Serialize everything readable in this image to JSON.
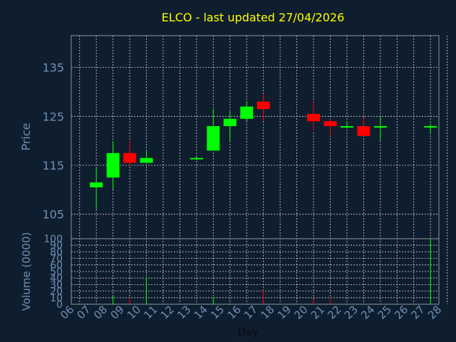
{
  "colors": {
    "background": "#0f1e2e",
    "grid": "#ffffff",
    "axis_text": "#6f8fb5",
    "title": "#ffff00",
    "up": "#00ff00",
    "down": "#ff0000"
  },
  "chart_data": {
    "type": "candlestick",
    "title": "ELCO - last updated 27/04/2026",
    "xlabel": "Day",
    "x_ticks": [
      "06",
      "07",
      "08",
      "09",
      "10",
      "11",
      "12",
      "13",
      "14",
      "15",
      "16",
      "17",
      "18",
      "19",
      "20",
      "21",
      "22",
      "23",
      "24",
      "25",
      "26",
      "27",
      "28"
    ],
    "price_panel": {
      "ylabel": "Price",
      "y_ticks": [
        135,
        125,
        115,
        105
      ],
      "ylim": [
        100,
        141.5
      ],
      "grid": true,
      "candles": [
        {
          "day": "07",
          "open": 110.5,
          "high": 114.5,
          "low": 106,
          "close": 111.5
        },
        {
          "day": "08",
          "open": 112.5,
          "high": 120,
          "low": 110,
          "close": 117.5
        },
        {
          "day": "09",
          "open": 117.5,
          "high": 120,
          "low": 115,
          "close": 115.5
        },
        {
          "day": "10",
          "open": 115.5,
          "high": 118,
          "low": 115.5,
          "close": 116.5
        },
        {
          "day": "13",
          "open": 116.3,
          "high": 116.8,
          "low": 116,
          "close": 116.5
        },
        {
          "day": "14",
          "open": 118,
          "high": 126.5,
          "low": 118,
          "close": 123
        },
        {
          "day": "15",
          "open": 123,
          "high": 126,
          "low": 120,
          "close": 124.5
        },
        {
          "day": "16",
          "open": 124.5,
          "high": 128,
          "low": 124,
          "close": 127
        },
        {
          "day": "17",
          "open": 128,
          "high": 129.5,
          "low": 124,
          "close": 126.5
        },
        {
          "day": "20",
          "open": 125.5,
          "high": 128,
          "low": 122,
          "close": 124
        },
        {
          "day": "21",
          "open": 124,
          "high": 124.5,
          "low": 121,
          "close": 123
        },
        {
          "day": "22",
          "open": 123,
          "high": 124,
          "low": 122.5,
          "close": 123
        },
        {
          "day": "23",
          "open": 123,
          "high": 125,
          "low": 121,
          "close": 121
        },
        {
          "day": "24",
          "open": 123,
          "high": 125,
          "low": 120,
          "close": 123
        },
        {
          "day": "27",
          "open": 123,
          "high": 123.5,
          "low": 121.5,
          "close": 123
        }
      ]
    },
    "volume_panel": {
      "ylabel": "Volume (0000)",
      "y_ticks": [
        100,
        90,
        80,
        70,
        60,
        50,
        40,
        30,
        20,
        10,
        0
      ],
      "ylim": [
        0,
        100
      ],
      "grid": true,
      "bars": [
        {
          "day": "08",
          "value": 12,
          "color": "up"
        },
        {
          "day": "09",
          "value": 10,
          "color": "down"
        },
        {
          "day": "10",
          "value": 40,
          "color": "up"
        },
        {
          "day": "14",
          "value": 10,
          "color": "up"
        },
        {
          "day": "17",
          "value": 22,
          "color": "down"
        },
        {
          "day": "20",
          "value": 8,
          "color": "down"
        },
        {
          "day": "21",
          "value": 10,
          "color": "down"
        },
        {
          "day": "27",
          "value": 100,
          "color": "up"
        }
      ]
    }
  }
}
